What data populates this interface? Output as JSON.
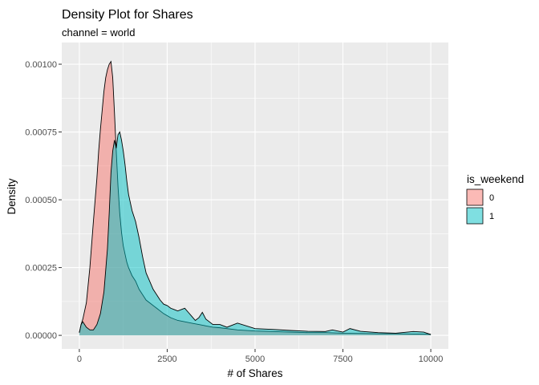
{
  "chart_data": {
    "type": "area",
    "title": "Density Plot for Shares",
    "subtitle": "channel =  world",
    "xlabel": "# of Shares",
    "ylabel": "Density",
    "xlim": [
      -500,
      10500
    ],
    "ylim": [
      -5e-05,
      0.00108
    ],
    "x_ticks": [
      0,
      2500,
      5000,
      7500,
      10000
    ],
    "x_tick_labels": [
      "0",
      "2500",
      "5000",
      "7500",
      "10000"
    ],
    "y_ticks": [
      0,
      0.00025,
      0.0005,
      0.00075,
      0.001
    ],
    "y_tick_labels": [
      "0.00000",
      "0.00025",
      "0.00050",
      "0.00075",
      "0.00100"
    ],
    "grid": true,
    "legend": {
      "title": "is_weekend",
      "position": "right",
      "entries": [
        {
          "label": "0",
          "color": "#F8766D"
        },
        {
          "label": "1",
          "color": "#00BFC4"
        }
      ]
    },
    "fill_alpha": 0.5,
    "series": [
      {
        "name": "0",
        "color": "#F8766D",
        "x": [
          0,
          50,
          100,
          200,
          300,
          400,
          500,
          550,
          600,
          650,
          700,
          750,
          800,
          850,
          900,
          950,
          1000,
          1050,
          1100,
          1150,
          1200,
          1250,
          1300,
          1350,
          1400,
          1500,
          1600,
          1700,
          1800,
          1900,
          2000,
          2200,
          2400,
          2600,
          2800,
          3000,
          3200,
          3400,
          3600,
          3800,
          4000,
          4500,
          5000,
          5500,
          6000,
          6500,
          7000,
          7500,
          8000,
          8500,
          9000,
          9500,
          10000
        ],
        "y": [
          1e-05,
          4e-05,
          6e-05,
          0.00012,
          0.00025,
          0.00042,
          0.00058,
          0.00068,
          0.00076,
          0.00083,
          0.0009,
          0.00095,
          0.00098,
          0.001,
          0.00101,
          0.00095,
          0.00082,
          0.00068,
          0.00055,
          0.00045,
          0.00038,
          0.00033,
          0.0003,
          0.00027,
          0.00025,
          0.00022,
          0.0002,
          0.00017,
          0.00015,
          0.00013,
          0.00012,
          0.0001,
          8e-05,
          6.5e-05,
          5.5e-05,
          5e-05,
          4.5e-05,
          4e-05,
          3.5e-05,
          3e-05,
          2.8e-05,
          2e-05,
          1.6e-05,
          1.4e-05,
          1.2e-05,
          1e-05,
          1e-05,
          8e-06,
          7e-06,
          6e-06,
          6e-06,
          5e-06,
          4e-06
        ]
      },
      {
        "name": "1",
        "color": "#00BFC4",
        "x": [
          0,
          50,
          100,
          150,
          200,
          300,
          400,
          500,
          600,
          700,
          800,
          850,
          900,
          950,
          1000,
          1050,
          1100,
          1150,
          1200,
          1250,
          1300,
          1350,
          1400,
          1500,
          1600,
          1700,
          1800,
          1900,
          2000,
          2100,
          2200,
          2300,
          2400,
          2500,
          2600,
          2700,
          2800,
          2900,
          3000,
          3100,
          3200,
          3300,
          3400,
          3500,
          3600,
          3800,
          4000,
          4200,
          4500,
          5000,
          5500,
          6000,
          6500,
          7000,
          7200,
          7500,
          7700,
          8000,
          8500,
          9000,
          9500,
          9800,
          10000
        ],
        "y": [
          1e-05,
          4e-05,
          5e-05,
          4e-05,
          3e-05,
          2e-05,
          2e-05,
          4e-05,
          8e-05,
          0.00016,
          0.00032,
          0.00045,
          0.0006,
          0.00068,
          0.00072,
          0.00069,
          0.00074,
          0.00075,
          0.00072,
          0.00068,
          0.00063,
          0.00057,
          0.00052,
          0.00046,
          0.00042,
          0.00036,
          0.00029,
          0.00023,
          0.0002,
          0.00017,
          0.00015,
          0.00013,
          0.000115,
          0.00011,
          0.0001,
          9.5e-05,
          9e-05,
          9.5e-05,
          0.0001,
          8.5e-05,
          7e-05,
          5.5e-05,
          6.5e-05,
          8.5e-05,
          6e-05,
          4e-05,
          4e-05,
          3e-05,
          4.5e-05,
          2.5e-05,
          2.2e-05,
          1.8e-05,
          1.5e-05,
          1.4e-05,
          2e-05,
          1.2e-05,
          2.5e-05,
          1.5e-05,
          1e-05,
          8e-06,
          1.4e-05,
          1.2e-05,
          3e-06
        ]
      }
    ]
  }
}
